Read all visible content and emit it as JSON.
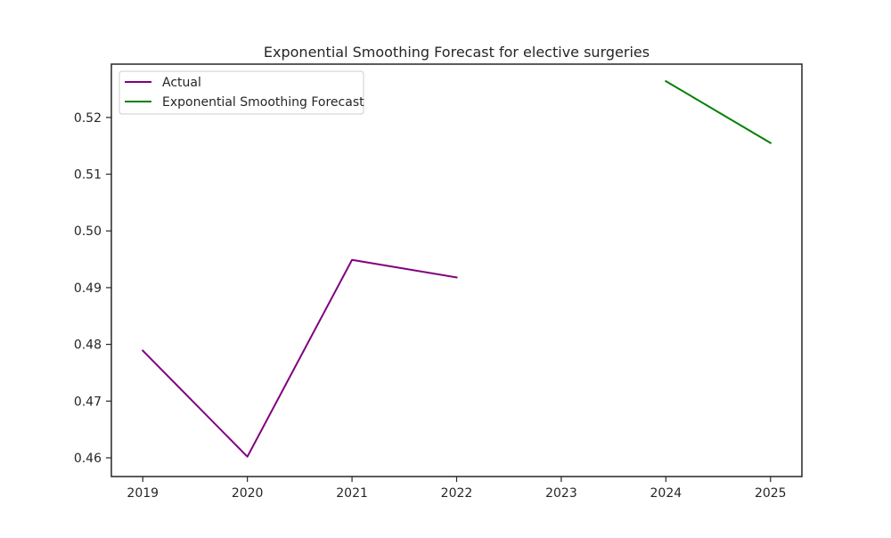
{
  "chart_data": {
    "type": "line",
    "title": "Exponential Smoothing Forecast for elective surgeries",
    "xlabel": "",
    "ylabel": "",
    "grid": false,
    "legend_position": "top-left",
    "xlim": [
      2018.7,
      2025.3
    ],
    "ylim": [
      0.4567,
      0.5294
    ],
    "x_ticks": [
      2019,
      2020,
      2021,
      2022,
      2023,
      2024,
      2025
    ],
    "y_ticks": [
      0.46,
      0.47,
      0.48,
      0.49,
      0.5,
      0.51,
      0.52
    ],
    "y_tick_labels": [
      "0.46",
      "0.47",
      "0.48",
      "0.49",
      "0.50",
      "0.51",
      "0.52"
    ],
    "series": [
      {
        "name": "Actual",
        "color": "#800080",
        "x": [
          2019,
          2020,
          2021,
          2022
        ],
        "y": [
          0.4789,
          0.4602,
          0.4949,
          0.4918
        ]
      },
      {
        "name": "Exponential Smoothing Forecast",
        "color": "#008000",
        "x": [
          2024,
          2025
        ],
        "y": [
          0.5264,
          0.5155
        ]
      }
    ]
  }
}
